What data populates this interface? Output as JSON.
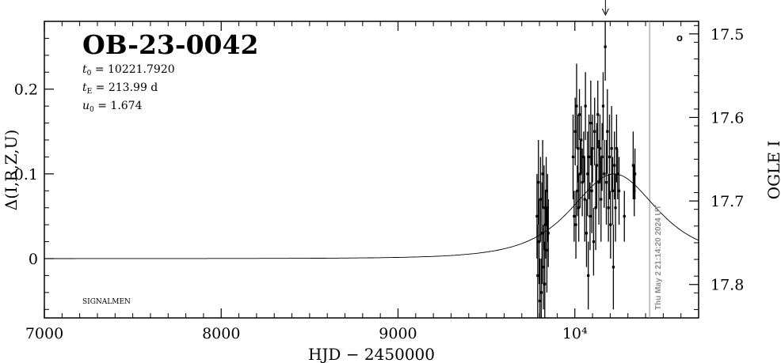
{
  "chart_data": {
    "type": "scatter",
    "event_name": "OB-23-0042",
    "parameters": {
      "t0": "10221.7920",
      "tE": "213.99 d",
      "u0": "1.674"
    },
    "t0_label_var": "t",
    "t0_label_sub": "0",
    "tE_label_var": "t",
    "tE_label_sub": "E",
    "u0_label_var": "u",
    "u0_label_sub": "0",
    "xlabel": "HJD − 2450000",
    "ylabel_left": "Δ(I,R,Z,U)",
    "ylabel_right": "OGLE I",
    "watermark": "SIGNALMEN",
    "timestamp": "Thu May  2 21:14:20 2024 UT",
    "legend_symbol": "o",
    "xlim": [
      7000,
      10700
    ],
    "ylim_left": [
      -0.07,
      0.28
    ],
    "ylim_right_mag": [
      17.485,
      17.84
    ],
    "x_ticks": [
      {
        "value": 7000,
        "label": "7000"
      },
      {
        "value": 8000,
        "label": "8000"
      },
      {
        "value": 9000,
        "label": "9000"
      },
      {
        "value": 10000,
        "label": "10⁴"
      }
    ],
    "y_ticks_left": [
      {
        "value": 0,
        "label": "0"
      },
      {
        "value": 0.1,
        "label": "0.1"
      },
      {
        "value": 0.2,
        "label": "0.2"
      }
    ],
    "y_ticks_right": [
      {
        "value": 17.5,
        "label": "17.5"
      },
      {
        "value": 17.6,
        "label": "17.6"
      },
      {
        "value": 17.7,
        "label": "17.7"
      },
      {
        "value": 17.8,
        "label": "17.8"
      }
    ],
    "current_time_marker": 10423,
    "arrow_x": 10173,
    "model": {
      "t0": 10221.792,
      "tE": 213.99,
      "u0": 1.674,
      "x_start": 7000,
      "x_end": 10700,
      "x_step": 10
    },
    "points": [
      {
        "x": 9786,
        "y": 0.05,
        "err": 0.05
      },
      {
        "x": 9790,
        "y": -0.02,
        "err": 0.06
      },
      {
        "x": 9794,
        "y": 0.09,
        "err": 0.05
      },
      {
        "x": 9798,
        "y": 0.02,
        "err": 0.05
      },
      {
        "x": 9802,
        "y": -0.05,
        "err": 0.05
      },
      {
        "x": 9806,
        "y": 0.07,
        "err": 0.05
      },
      {
        "x": 9810,
        "y": -0.04,
        "err": 0.04
      },
      {
        "x": 9814,
        "y": 0.03,
        "err": 0.06
      },
      {
        "x": 9818,
        "y": 0.1,
        "err": 0.04
      },
      {
        "x": 9822,
        "y": -0.01,
        "err": 0.05
      },
      {
        "x": 9826,
        "y": 0.06,
        "err": 0.05
      },
      {
        "x": 9830,
        "y": -0.03,
        "err": 0.05
      },
      {
        "x": 9834,
        "y": 0.04,
        "err": 0.04
      },
      {
        "x": 9838,
        "y": 0.08,
        "err": 0.04
      },
      {
        "x": 9842,
        "y": 0.01,
        "err": 0.05
      },
      {
        "x": 9846,
        "y": 0.06,
        "err": 0.04
      },
      {
        "x": 9850,
        "y": 0.03,
        "err": 0.04
      },
      {
        "x": 9990,
        "y": 0.12,
        "err": 0.05
      },
      {
        "x": 9996,
        "y": 0.05,
        "err": 0.03
      },
      {
        "x": 10002,
        "y": 0.15,
        "err": 0.04
      },
      {
        "x": 10006,
        "y": 0.04,
        "err": 0.04
      },
      {
        "x": 10010,
        "y": 0.18,
        "err": 0.05
      },
      {
        "x": 10014,
        "y": 0.08,
        "err": 0.03
      },
      {
        "x": 10018,
        "y": 0.13,
        "err": 0.04
      },
      {
        "x": 10022,
        "y": 0.06,
        "err": 0.04
      },
      {
        "x": 10026,
        "y": 0.17,
        "err": 0.03
      },
      {
        "x": 10030,
        "y": 0.1,
        "err": 0.04
      },
      {
        "x": 10036,
        "y": 0.14,
        "err": 0.04
      },
      {
        "x": 10042,
        "y": 0.09,
        "err": 0.04
      },
      {
        "x": 10050,
        "y": 0.12,
        "err": 0.03
      },
      {
        "x": 10056,
        "y": 0.07,
        "err": 0.05
      },
      {
        "x": 10060,
        "y": 0.18,
        "err": 0.04
      },
      {
        "x": 10066,
        "y": 0.03,
        "err": 0.04
      },
      {
        "x": 10072,
        "y": 0.1,
        "err": 0.05
      },
      {
        "x": 10076,
        "y": -0.02,
        "err": 0.04
      },
      {
        "x": 10080,
        "y": 0.12,
        "err": 0.05
      },
      {
        "x": 10086,
        "y": 0.05,
        "err": 0.04
      },
      {
        "x": 10090,
        "y": 0.16,
        "err": 0.05
      },
      {
        "x": 10096,
        "y": 0.08,
        "err": 0.05
      },
      {
        "x": 10100,
        "y": 0.13,
        "err": 0.04
      },
      {
        "x": 10106,
        "y": 0.02,
        "err": 0.04
      },
      {
        "x": 10112,
        "y": 0.15,
        "err": 0.04
      },
      {
        "x": 10118,
        "y": 0.06,
        "err": 0.05
      },
      {
        "x": 10124,
        "y": 0.11,
        "err": 0.05
      },
      {
        "x": 10130,
        "y": 0.17,
        "err": 0.04
      },
      {
        "x": 10136,
        "y": 0.09,
        "err": 0.05
      },
      {
        "x": 10142,
        "y": 0.13,
        "err": 0.04
      },
      {
        "x": 10148,
        "y": 0.07,
        "err": 0.05
      },
      {
        "x": 10154,
        "y": 0.12,
        "err": 0.04
      },
      {
        "x": 10160,
        "y": 0.18,
        "err": 0.04
      },
      {
        "x": 10166,
        "y": 0.1,
        "err": 0.04
      },
      {
        "x": 10172,
        "y": 0.25,
        "err": 0.04
      },
      {
        "x": 10178,
        "y": 0.09,
        "err": 0.05
      },
      {
        "x": 10184,
        "y": 0.15,
        "err": 0.05
      },
      {
        "x": 10190,
        "y": 0.06,
        "err": 0.04
      },
      {
        "x": 10196,
        "y": 0.12,
        "err": 0.05
      },
      {
        "x": 10202,
        "y": 0.04,
        "err": 0.04
      },
      {
        "x": 10208,
        "y": 0.13,
        "err": 0.05
      },
      {
        "x": 10214,
        "y": 0.08,
        "err": 0.04
      },
      {
        "x": 10218,
        "y": -0.01,
        "err": 0.05
      },
      {
        "x": 10224,
        "y": 0.11,
        "err": 0.04
      },
      {
        "x": 10230,
        "y": 0.06,
        "err": 0.04
      },
      {
        "x": 10236,
        "y": 0.13,
        "err": 0.04
      },
      {
        "x": 10242,
        "y": 0.1,
        "err": 0.03
      },
      {
        "x": 10250,
        "y": 0.08,
        "err": 0.04
      },
      {
        "x": 10280,
        "y": 0.05,
        "err": 0.03
      },
      {
        "x": 10330,
        "y": 0.11,
        "err": 0.04
      },
      {
        "x": 10336,
        "y": 0.08,
        "err": 0.03
      },
      {
        "x": 10340,
        "y": 0.1,
        "err": 0.03
      }
    ]
  }
}
